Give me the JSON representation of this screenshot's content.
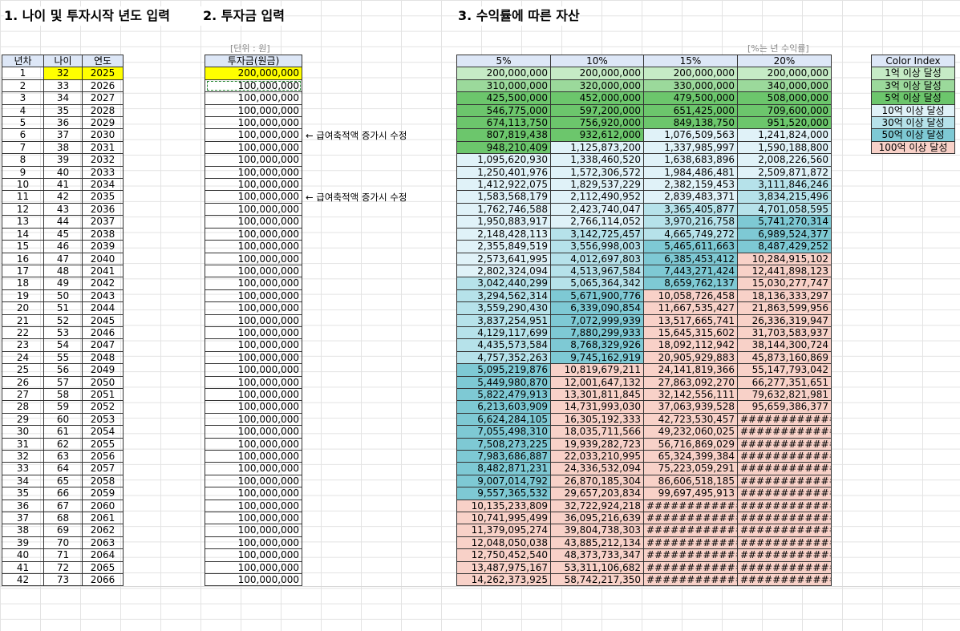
{
  "headings": {
    "age_input": "1. 나이 및 투자시작 년도 입력",
    "investment_input": "2. 투자금 입력",
    "assets": "3. 수익률에 따른 자산"
  },
  "units": {
    "investment": "[단위 : 원]",
    "rate": "[%는 년 수익률]"
  },
  "notes": {
    "raise_note_1": "← 급여축적액 증가시 수정",
    "raise_note_2": "← 급여축적액 증가시 수정"
  },
  "age_table": {
    "headers": [
      "년차",
      "나이",
      "연도"
    ],
    "start_age": 32,
    "start_year": 2025,
    "years": 42
  },
  "investment_table": {
    "header": "투자금(원금)",
    "values": [
      "200,000,000",
      "100,000,000",
      "100,000,000",
      "100,000,000",
      "100,000,000",
      "100,000,000",
      "100,000,000",
      "100,000,000",
      "100,000,000",
      "100,000,000",
      "100,000,000",
      "100,000,000",
      "100,000,000",
      "100,000,000",
      "100,000,000",
      "100,000,000",
      "100,000,000",
      "100,000,000",
      "100,000,000",
      "100,000,000",
      "100,000,000",
      "100,000,000",
      "100,000,000",
      "100,000,000",
      "100,000,000",
      "100,000,000",
      "100,000,000",
      "100,000,000",
      "100,000,000",
      "100,000,000",
      "100,000,000",
      "100,000,000",
      "100,000,000",
      "100,000,000",
      "100,000,000",
      "100,000,000",
      "100,000,000",
      "100,000,000",
      "100,000,000",
      "100,000,000",
      "100,000,000",
      "100,000,000"
    ]
  },
  "asset_table": {
    "headers": [
      "5%",
      "10%",
      "15%",
      "20%"
    ],
    "columns": [
      [
        "200,000,000",
        "310,000,000",
        "425,500,000",
        "546,775,000",
        "674,113,750",
        "807,819,438",
        "948,210,409",
        "1,095,620,930",
        "1,250,401,976",
        "1,412,922,075",
        "1,583,568,179",
        "1,762,746,588",
        "1,950,883,917",
        "2,148,428,113",
        "2,355,849,519",
        "2,573,641,995",
        "2,802,324,094",
        "3,042,440,299",
        "3,294,562,314",
        "3,559,290,430",
        "3,837,254,951",
        "4,129,117,699",
        "4,435,573,584",
        "4,757,352,263",
        "5,095,219,876",
        "5,449,980,870",
        "5,822,479,913",
        "6,213,603,909",
        "6,624,284,105",
        "7,055,498,310",
        "7,508,273,225",
        "7,983,686,887",
        "8,482,871,231",
        "9,007,014,792",
        "9,557,365,532",
        "10,135,233,809",
        "10,741,995,499",
        "11,379,095,274",
        "12,048,050,038",
        "12,750,452,540",
        "13,487,975,167",
        "14,262,373,925"
      ],
      [
        "200,000,000",
        "320,000,000",
        "452,000,000",
        "597,200,000",
        "756,920,000",
        "932,612,000",
        "1,125,873,200",
        "1,338,460,520",
        "1,572,306,572",
        "1,829,537,229",
        "2,112,490,952",
        "2,423,740,047",
        "2,766,114,052",
        "3,142,725,457",
        "3,556,998,003",
        "4,012,697,803",
        "4,513,967,584",
        "5,065,364,342",
        "5,671,900,776",
        "6,339,090,854",
        "7,072,999,939",
        "7,880,299,933",
        "8,768,329,926",
        "9,745,162,919",
        "10,819,679,211",
        "12,001,647,132",
        "13,301,811,845",
        "14,731,993,030",
        "16,305,192,333",
        "18,035,711,566",
        "19,939,282,723",
        "22,033,210,995",
        "24,336,532,094",
        "26,870,185,304",
        "29,657,203,834",
        "32,722,924,218",
        "36,095,216,639",
        "39,804,738,303",
        "43,885,212,134",
        "48,373,733,347",
        "53,311,106,682",
        "58,742,217,350"
      ],
      [
        "200,000,000",
        "330,000,000",
        "479,500,000",
        "651,425,000",
        "849,138,750",
        "1,076,509,563",
        "1,337,985,997",
        "1,638,683,896",
        "1,984,486,481",
        "2,382,159,453",
        "2,839,483,371",
        "3,365,405,877",
        "3,970,216,758",
        "4,665,749,272",
        "5,465,611,663",
        "6,385,453,412",
        "7,443,271,424",
        "8,659,762,137",
        "10,058,726,458",
        "11,667,535,427",
        "13,517,665,741",
        "15,645,315,602",
        "18,092,112,942",
        "20,905,929,883",
        "24,141,819,366",
        "27,863,092,270",
        "32,142,556,111",
        "37,063,939,528",
        "42,723,530,457",
        "49,232,060,025",
        "56,716,869,029",
        "65,324,399,384",
        "75,223,059,291",
        "86,606,518,185",
        "99,697,495,913",
        "##############",
        "##############",
        "##############",
        "##############",
        "##############",
        "##############",
        "##############"
      ],
      [
        "200,000,000",
        "340,000,000",
        "508,000,000",
        "709,600,000",
        "951,520,000",
        "1,241,824,000",
        "1,590,188,800",
        "2,008,226,560",
        "2,509,871,872",
        "3,111,846,246",
        "3,834,215,496",
        "4,701,058,595",
        "5,741,270,314",
        "6,989,524,377",
        "8,487,429,252",
        "10,284,915,102",
        "12,441,898,123",
        "15,030,277,747",
        "18,136,333,297",
        "21,863,599,956",
        "26,336,319,947",
        "31,703,583,937",
        "38,144,300,724",
        "45,873,160,869",
        "55,147,793,042",
        "66,277,351,651",
        "79,632,821,981",
        "95,659,386,377",
        "##############",
        "##############",
        "##############",
        "##############",
        "##############",
        "##############",
        "##############",
        "##############",
        "##############",
        "##############",
        "##############",
        "##############",
        "##############",
        "##############"
      ]
    ],
    "tier_colors": [
      "#c6ebc6",
      "#9bd99b",
      "#6cc66c",
      "#e0f2f8",
      "#b6e2ea",
      "#7ec9d4",
      "#f8d1c8"
    ],
    "color_map": [
      [
        0,
        1,
        2,
        2,
        2,
        2,
        2,
        3,
        3,
        3,
        3,
        3,
        3,
        3,
        3,
        3,
        3,
        4,
        4,
        4,
        4,
        4,
        4,
        4,
        5,
        5,
        5,
        5,
        5,
        5,
        5,
        5,
        5,
        5,
        5,
        6,
        6,
        6,
        6,
        6,
        6,
        6
      ],
      [
        0,
        1,
        2,
        2,
        2,
        2,
        3,
        3,
        3,
        3,
        3,
        3,
        3,
        4,
        4,
        4,
        4,
        4,
        5,
        5,
        5,
        5,
        5,
        5,
        6,
        6,
        6,
        6,
        6,
        6,
        6,
        6,
        6,
        6,
        6,
        6,
        6,
        6,
        6,
        6,
        6,
        6
      ],
      [
        0,
        1,
        2,
        2,
        2,
        3,
        3,
        3,
        3,
        3,
        3,
        4,
        4,
        4,
        5,
        5,
        5,
        5,
        6,
        6,
        6,
        6,
        6,
        6,
        6,
        6,
        6,
        6,
        6,
        6,
        6,
        6,
        6,
        6,
        6,
        6,
        6,
        6,
        6,
        6,
        6,
        6
      ],
      [
        0,
        1,
        2,
        2,
        2,
        3,
        3,
        3,
        3,
        4,
        4,
        4,
        5,
        5,
        5,
        6,
        6,
        6,
        6,
        6,
        6,
        6,
        6,
        6,
        6,
        6,
        6,
        6,
        6,
        6,
        6,
        6,
        6,
        6,
        6,
        6,
        6,
        6,
        6,
        6,
        6,
        6
      ]
    ]
  },
  "legend": {
    "title": "Color Index",
    "items": [
      "1억 이상 달성",
      "3억 이상 달성",
      "5억 이상 달성",
      "10억 이상 달성",
      "30억 이상 달성",
      "50억 이상 달성",
      "100억 이상 달성"
    ]
  }
}
